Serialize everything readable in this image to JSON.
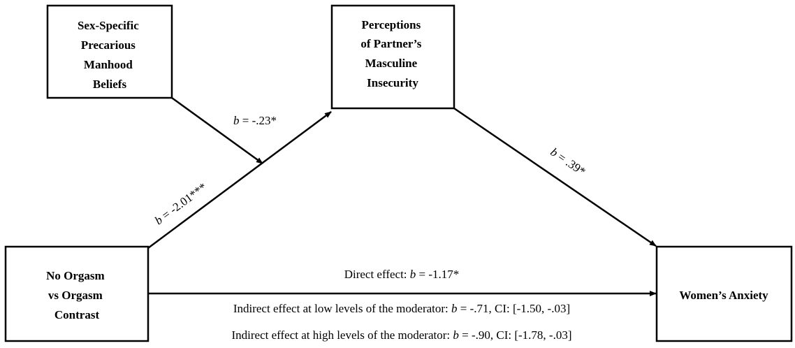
{
  "nodes": [
    {
      "lines": [
        "Sex-Specific",
        "Precarious",
        "Manhood",
        "Beliefs"
      ]
    },
    {
      "lines": [
        "Perceptions",
        "of Partner’s",
        "Masculine",
        "Insecurity"
      ]
    },
    {
      "lines": [
        "No Orgasm",
        "vs Orgasm",
        "Contrast"
      ]
    },
    {
      "lines": [
        "Women’s Anxiety"
      ]
    }
  ],
  "edges": [
    {
      "symbol": "b",
      "text": "= -.23*"
    },
    {
      "symbol": "b",
      "text": "= -2.01***"
    },
    {
      "symbol": "b",
      "text": "= .39*"
    },
    {
      "prefix": "Direct effect:",
      "symbol": "b",
      "text": "= -1.17*"
    }
  ],
  "indirect_effects": [
    {
      "prefix": "Indirect effect at low levels of the moderator:",
      "symbol": "b",
      "text": "= -.71, CI: [-1.50, -.03]"
    },
    {
      "prefix": "Indirect effect at high levels of the moderator:",
      "symbol": "b",
      "text": "= -.90, CI: [-1.78, -.03]"
    }
  ]
}
